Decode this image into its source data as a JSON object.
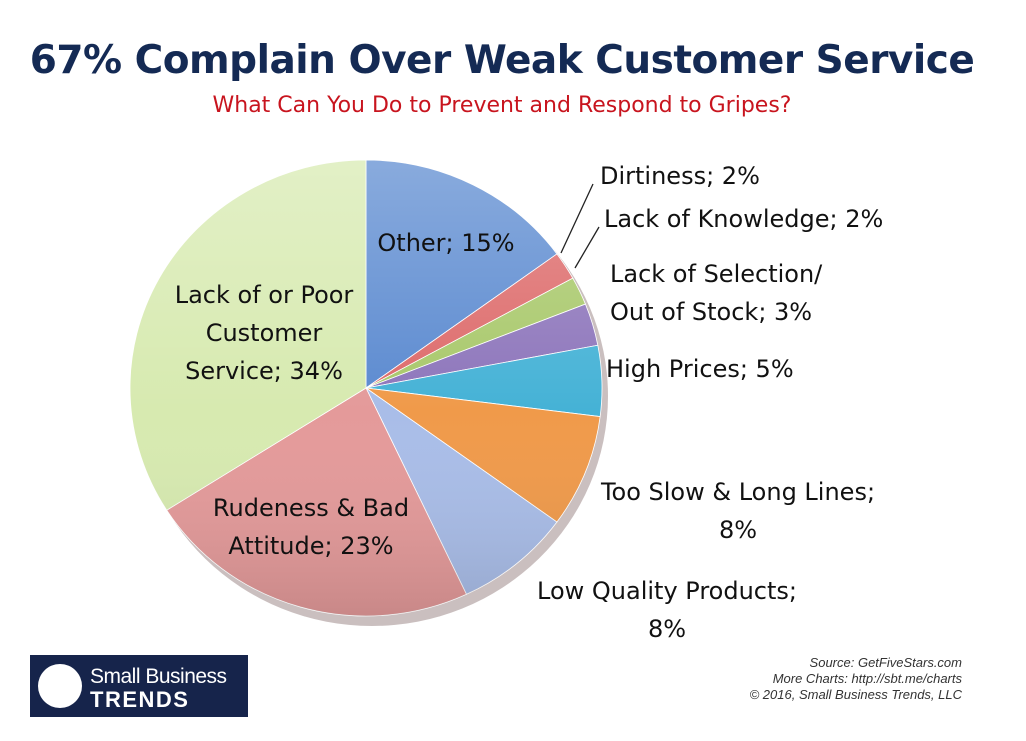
{
  "header": {
    "title": "67% Complain Over Weak Customer Service",
    "subtitle": "What Can You Do to Prevent and Respond to Gripes?"
  },
  "chart_data": {
    "type": "pie",
    "start_angle_deg": 0,
    "direction": "clockwise",
    "slices": [
      {
        "label": "Other",
        "value": 15,
        "color": "#5b8ad0",
        "label_lines": [
          "Other; 15%"
        ]
      },
      {
        "label": "Dirtiness",
        "value": 2,
        "color": "#dd6a6a",
        "label_lines": [
          "Dirtiness; 2%"
        ]
      },
      {
        "label": "Lack of Knowledge",
        "value": 2,
        "color": "#a8c86a",
        "label_lines": [
          "Lack of Knowledge; 2%"
        ]
      },
      {
        "label": "Lack of Selection/ Out of Stock",
        "value": 3,
        "color": "#8d75bb",
        "label_lines": [
          "Lack of Selection/",
          "Out of Stock; 3%"
        ]
      },
      {
        "label": "High Prices",
        "value": 5,
        "color": "#45b2d6",
        "label_lines": [
          "High Prices; 5%"
        ]
      },
      {
        "label": "Too Slow & Long Lines",
        "value": 8,
        "color": "#f09a4a",
        "label_lines": [
          "Too Slow & Long Lines;",
          "8%"
        ]
      },
      {
        "label": "Low Quality Products",
        "value": 8,
        "color": "#a9bde8",
        "label_lines": [
          "Low Quality Products;",
          "8%"
        ]
      },
      {
        "label": "Rudeness & Bad Attitude",
        "value": 23,
        "color": "#e49a9a",
        "label_lines": [
          "Rudeness & Bad",
          "Attitude; 23%"
        ]
      },
      {
        "label": "Lack of or Poor Customer Service",
        "value": 34,
        "color": "#d7eab0",
        "label_lines": [
          "Lack of or Poor",
          "Customer",
          "Service; 34%"
        ]
      }
    ]
  },
  "footer": {
    "logo_line1": "Small Business",
    "logo_line2": "TRENDS",
    "source": "Source: GetFiveStars.com",
    "more_charts": "More Charts: http://sbt.me/charts",
    "copyright": "© 2016, Small Business Trends, LLC"
  }
}
